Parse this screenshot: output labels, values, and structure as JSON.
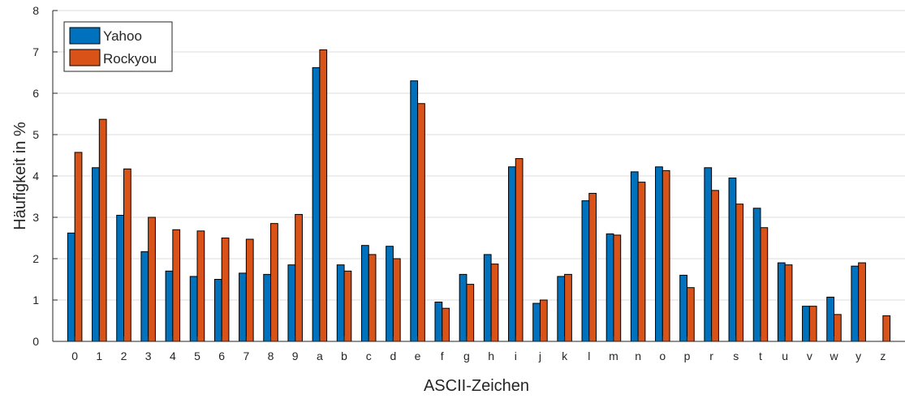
{
  "chart_data": {
    "type": "bar",
    "title": "",
    "xlabel": "ASCII-Zeichen",
    "ylabel": "Häufigkeit in %",
    "ylim": [
      0,
      8
    ],
    "yticks": [
      "0",
      "1",
      "2",
      "3",
      "4",
      "5",
      "6",
      "7",
      "8"
    ],
    "grid": "horizontal",
    "legend_position": "top-left",
    "categories": [
      "0",
      "1",
      "2",
      "3",
      "4",
      "5",
      "6",
      "7",
      "8",
      "9",
      "a",
      "b",
      "c",
      "d",
      "e",
      "f",
      "g",
      "h",
      "i",
      "j",
      "k",
      "l",
      "m",
      "n",
      "o",
      "p",
      "r",
      "s",
      "t",
      "u",
      "v",
      "w",
      "y",
      "z"
    ],
    "series": [
      {
        "name": "Yahoo",
        "color": "#0072BD",
        "values": [
          2.62,
          4.2,
          3.05,
          2.17,
          1.7,
          1.57,
          1.5,
          1.65,
          1.62,
          1.85,
          6.62,
          1.85,
          2.32,
          2.3,
          6.3,
          0.95,
          1.62,
          2.1,
          4.22,
          0.92,
          1.57,
          3.4,
          2.6,
          4.1,
          4.22,
          1.6,
          4.2,
          3.95,
          3.22,
          1.9,
          0.85,
          1.07,
          1.82,
          0.0
        ]
      },
      {
        "name": "Rockyou",
        "color": "#D95319",
        "values": [
          4.57,
          5.37,
          4.17,
          3.0,
          2.7,
          2.67,
          2.5,
          2.47,
          2.85,
          3.07,
          7.05,
          1.7,
          2.1,
          2.0,
          5.75,
          0.8,
          1.38,
          1.87,
          4.42,
          1.0,
          1.62,
          3.58,
          2.57,
          3.85,
          4.13,
          1.3,
          3.65,
          3.32,
          2.75,
          1.85,
          0.85,
          0.65,
          1.9,
          0.62
        ]
      }
    ]
  }
}
